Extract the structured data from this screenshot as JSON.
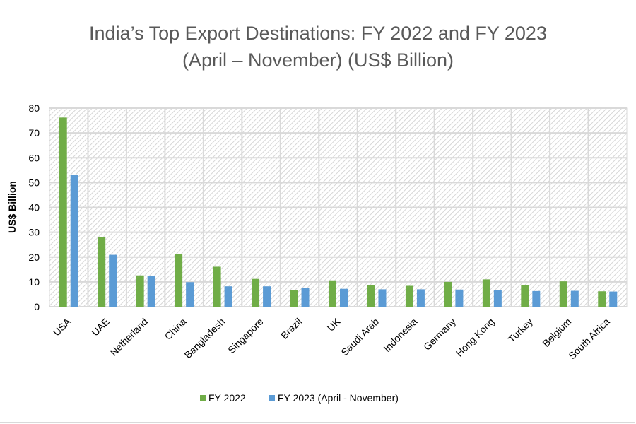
{
  "chart_data": {
    "type": "bar",
    "title": "India’s Top Export Destinations: FY 2022 and FY 2023",
    "subtitle": "(April – November) (US$ Billion)",
    "xlabel": "",
    "ylabel": "US$ Billion",
    "ylim": [
      0,
      80
    ],
    "yticks": [
      0,
      10,
      20,
      30,
      40,
      50,
      60,
      70,
      80
    ],
    "grid": true,
    "legend_position": "bottom",
    "categories": [
      "USA",
      "UAE",
      "Netherland",
      "China",
      "Bangladesh",
      "Singapore",
      "Brazil",
      "UK",
      "Saudi Arab",
      "Indonesia",
      "Germany",
      "Hong Kong",
      "Turkey",
      "Belgium",
      "South Africa"
    ],
    "series": [
      {
        "name": "FY 2022",
        "color": "#70ad47",
        "values": [
          76.2,
          28.0,
          12.6,
          21.3,
          16.1,
          11.2,
          6.6,
          10.6,
          8.8,
          8.4,
          10.0,
          11.0,
          8.8,
          10.2,
          6.2
        ]
      },
      {
        "name": "FY 2023 (April - November)",
        "color": "#5b9bd5",
        "values": [
          53.0,
          20.9,
          12.4,
          9.9,
          8.2,
          8.2,
          7.5,
          7.2,
          7.0,
          7.0,
          6.9,
          6.7,
          6.3,
          6.4,
          6.1
        ]
      }
    ]
  }
}
